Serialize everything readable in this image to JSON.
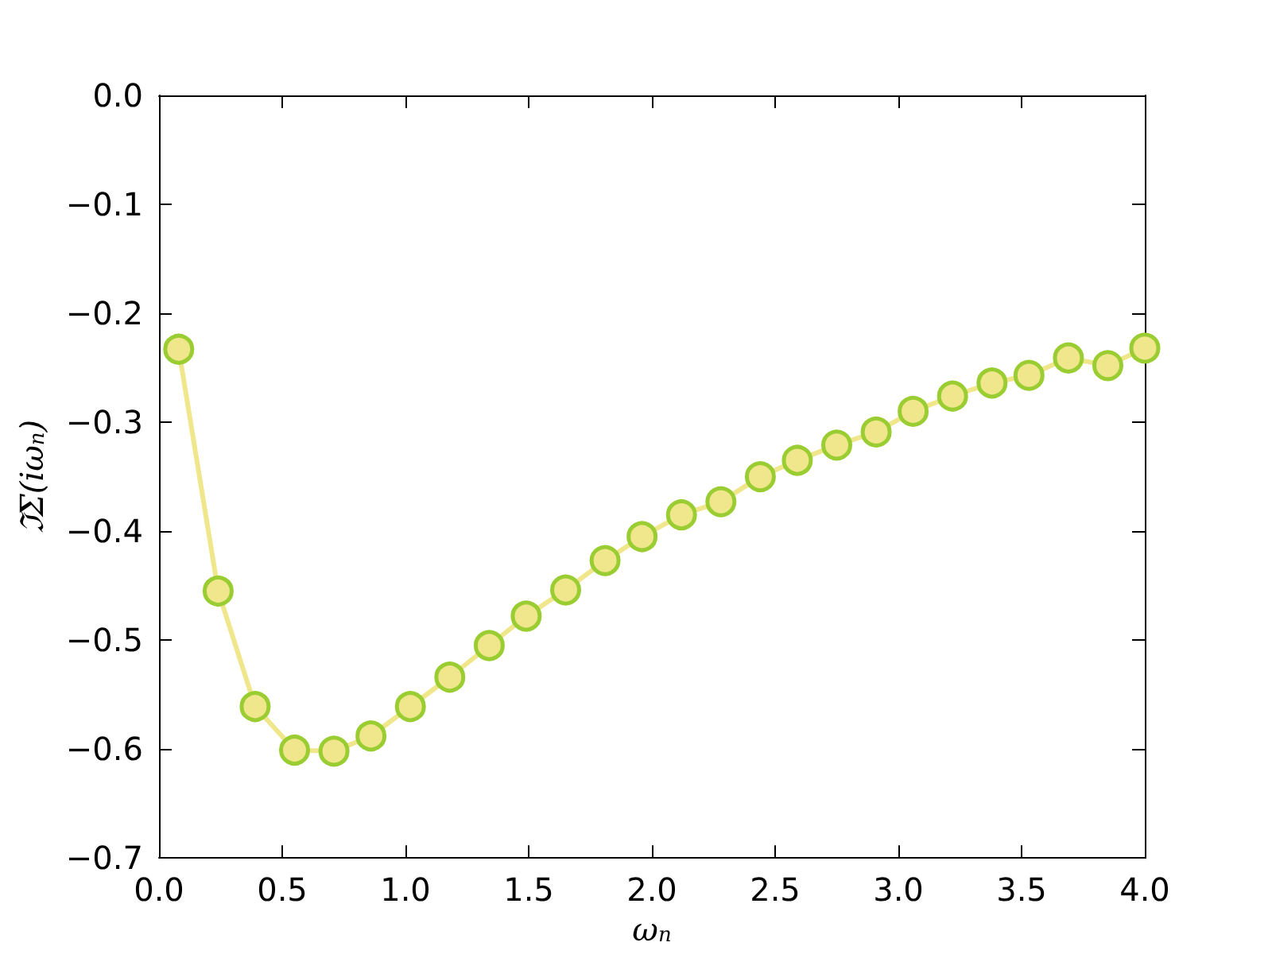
{
  "chart_data": {
    "type": "line",
    "xlabel": "ω$_{n}$",
    "ylabel": "ℑΣ(iω$_{n}$)",
    "x": [
      0.08,
      0.24,
      0.39,
      0.55,
      0.71,
      0.86,
      1.02,
      1.18,
      1.34,
      1.49,
      1.65,
      1.81,
      1.96,
      2.12,
      2.28,
      2.44,
      2.59,
      2.75,
      2.91,
      3.06,
      3.22,
      3.38,
      3.53,
      3.69,
      3.85,
      4.0
    ],
    "series": [
      {
        "color": "#f0e68c",
        "values": [
          -0.233,
          -0.455,
          -0.561,
          -0.601,
          -0.602,
          -0.588,
          -0.561,
          -0.534,
          -0.505,
          -0.478,
          -0.454,
          -0.427,
          -0.405,
          -0.385,
          -0.373,
          -0.35,
          -0.335,
          -0.321,
          -0.309,
          -0.29,
          -0.276,
          -0.264,
          -0.257,
          -0.241,
          -0.248,
          -0.232
        ]
      }
    ],
    "marker": "circle",
    "line_style": "solid",
    "grid": false,
    "xlim": [
      0,
      4
    ],
    "xticks": [
      {
        "value": 0,
        "label": "0.0"
      },
      0.5,
      {
        "value": 1,
        "label": "1.0"
      },
      1.5,
      {
        "value": 2,
        "label": "2.0"
      },
      2.5,
      {
        "value": 3,
        "label": "3.0"
      },
      3.5,
      {
        "value": 4,
        "label": "4.0"
      }
    ],
    "ylim": [
      -0.7,
      0
    ],
    "yticks": [
      -0.7,
      -0.6,
      -0.5,
      -0.4,
      -0.3,
      -0.2,
      -0.1,
      {
        "value": 0,
        "label": "0.0"
      }
    ]
  }
}
